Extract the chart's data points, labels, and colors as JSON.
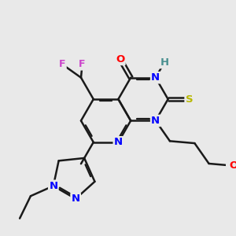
{
  "background_color": "#e9e9e9",
  "bond_color": "#1a1a1a",
  "bond_lw": 1.8,
  "atom_colors": {
    "N": "#0000ff",
    "O_carbonyl": "#ff0000",
    "O_ether": "#ff0000",
    "S": "#b8b800",
    "F": "#cc44cc",
    "H": "#4a9090",
    "C": "#1a1a1a"
  },
  "font_size": 9.5
}
